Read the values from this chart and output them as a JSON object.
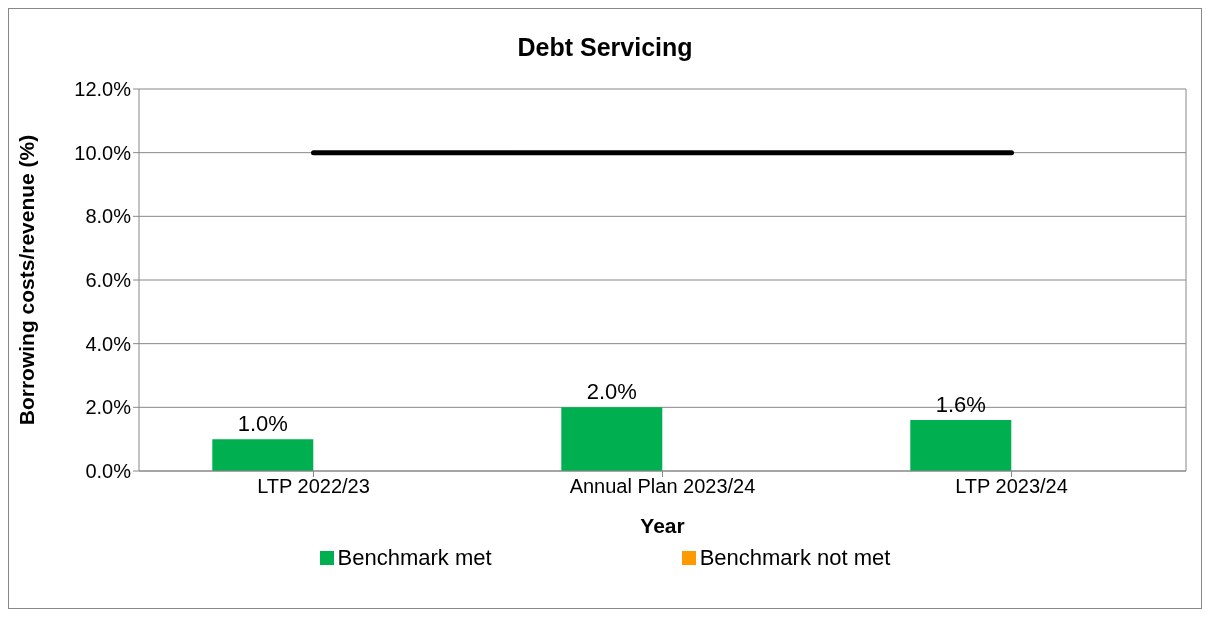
{
  "chart_data": {
    "type": "bar",
    "title": "Debt Servicing",
    "xlabel": "Year",
    "ylabel": "Borrowing costs/revenue (%)",
    "categories": [
      "LTP 2022/23",
      "Annual Plan 2023/24",
      "LTP 2023/24"
    ],
    "series": [
      {
        "name": "Benchmark met",
        "color": "#00b050",
        "values": [
          1.0,
          2.0,
          1.6
        ],
        "value_labels": [
          "1.0%",
          "2.0%",
          "1.6%"
        ]
      },
      {
        "name": "Benchmark not met",
        "color": "#ff9900",
        "values": [
          null,
          null,
          null
        ]
      },
      {
        "type": "line",
        "color": "#000000",
        "values": [
          10,
          10,
          10
        ]
      }
    ],
    "ylim": [
      0,
      12
    ],
    "yticks": [
      {
        "value": 0,
        "label": "0.0%"
      },
      {
        "value": 2,
        "label": "2.0%"
      },
      {
        "value": 4,
        "label": "4.0%"
      },
      {
        "value": 6,
        "label": "6.0%"
      },
      {
        "value": 8,
        "label": "8.0%"
      },
      {
        "value": 10,
        "label": "10.0%"
      },
      {
        "value": 12,
        "label": "12.0%"
      }
    ],
    "grid": "y",
    "legend": "bottom"
  }
}
